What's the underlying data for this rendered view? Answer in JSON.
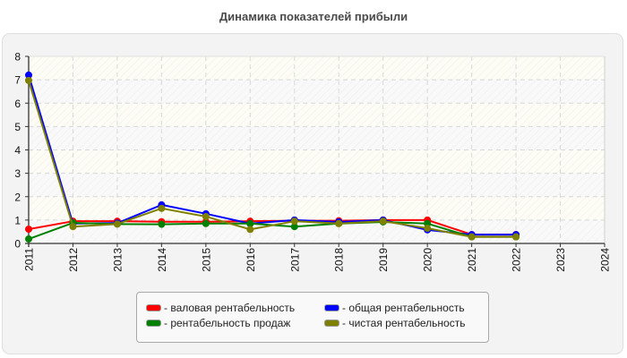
{
  "chart_data": {
    "type": "line",
    "title": "Динамика показателей прибыли",
    "xlabel": "",
    "ylabel": "",
    "x": [
      "2011",
      "2012",
      "2013",
      "2014",
      "2015",
      "2016",
      "2017",
      "2018",
      "2019",
      "2020",
      "2021",
      "2022",
      "2023",
      "2024"
    ],
    "ylim": [
      0,
      8
    ],
    "yticks": [
      0,
      1,
      2,
      3,
      4,
      5,
      6,
      7,
      8
    ],
    "grid": true,
    "legend_position": "bottom",
    "series": [
      {
        "name": "валовая рентабельность",
        "color": "#ff0000",
        "values": [
          0.61,
          0.95,
          0.95,
          0.93,
          0.93,
          0.95,
          0.97,
          0.97,
          1.0,
          1.0,
          0.38,
          0.38,
          null,
          null
        ]
      },
      {
        "name": "общая рентабельность",
        "color": "#0000ff",
        "values": [
          7.2,
          0.85,
          0.87,
          1.65,
          1.27,
          0.85,
          1.0,
          0.92,
          1.0,
          0.58,
          0.38,
          0.38,
          null,
          null
        ]
      },
      {
        "name": "рентабельность продаж",
        "color": "#008000",
        "values": [
          0.19,
          0.88,
          0.83,
          0.82,
          0.85,
          0.85,
          0.72,
          0.85,
          0.92,
          0.85,
          0.28,
          0.28,
          null,
          null
        ]
      },
      {
        "name": "чистая рентабельность",
        "color": "#808000",
        "values": [
          6.97,
          0.72,
          0.83,
          1.5,
          1.15,
          0.6,
          0.95,
          0.85,
          0.95,
          0.65,
          0.28,
          0.28,
          null,
          null
        ]
      }
    ]
  },
  "legend": {
    "items": [
      {
        "label": "- валовая рентабельность",
        "color": "#ff0000"
      },
      {
        "label": "- общая рентабельность",
        "color": "#0000ff"
      },
      {
        "label": "- рентабельность продаж",
        "color": "#008000"
      },
      {
        "label": "- чистая рентабельность",
        "color": "#808000"
      }
    ]
  }
}
